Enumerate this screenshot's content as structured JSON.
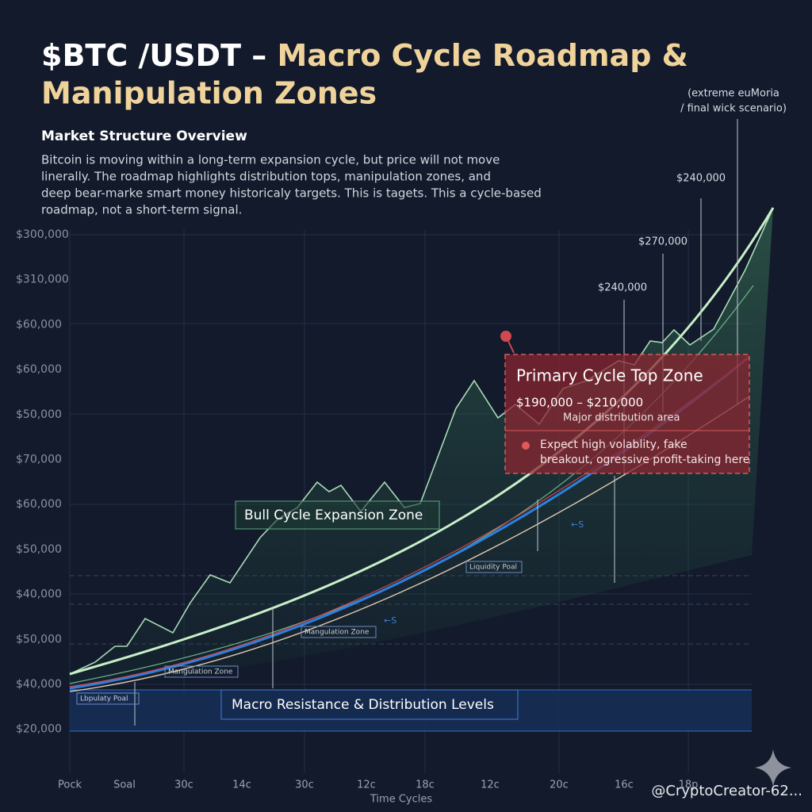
{
  "header": {
    "title_lead": "$BTC /USDT –",
    "title_rest": "Macro Cycle Roadmap &",
    "title_line2": "Manipulation Zones",
    "subtitle": "Market Structure Overview",
    "description": [
      "Bitcoin is moving within a long-term expansion cycle, but price will not move",
      "linerally. The roadmap highlights distribution tops, manipulation zones, and",
      "deep bear-marke smart money historicaly targets. This is tagets. This a cycle-based",
      "roadmap, not a short-term signal."
    ]
  },
  "y_axis_labels": [
    "$300,000",
    "$310,000",
    "$60,000",
    "$60,000",
    "$50,000",
    "$70,000",
    "$60,000",
    "$50,000",
    "$40,000",
    "$50,000",
    "$40,000",
    "$20,000"
  ],
  "x_axis_labels": [
    "Pock",
    "Soal",
    "30c",
    "14c",
    "30c",
    "12c",
    "18c",
    "12c",
    "20c",
    "16c",
    "18p"
  ],
  "x_axis_title": "Time Cycles",
  "annotations": {
    "extreme": [
      "(extreme euMoria",
      "/ final wick scenario)"
    ],
    "price_labels": [
      "$240,000",
      "$270,000",
      "$240,000"
    ]
  },
  "primary_zone": {
    "title": "Primary Cycle Top Zone",
    "range": "$190,000 – $210,000",
    "desc": "Major distribution area",
    "note": [
      "Expect high volablity, fake",
      "breakout, ogressive profit-taking here"
    ]
  },
  "bull_zone": "Bull Cycle Expansion Zone",
  "macro_zone": "Macro Resistance & Distribution Levels",
  "small_labels": [
    "Lbpulaty Poal",
    "Mangulation Zone",
    "Mangulation Zone",
    "Liquidity Poal",
    "←S",
    "←S"
  ],
  "watermark": "@CryptoCreator-62..."
}
